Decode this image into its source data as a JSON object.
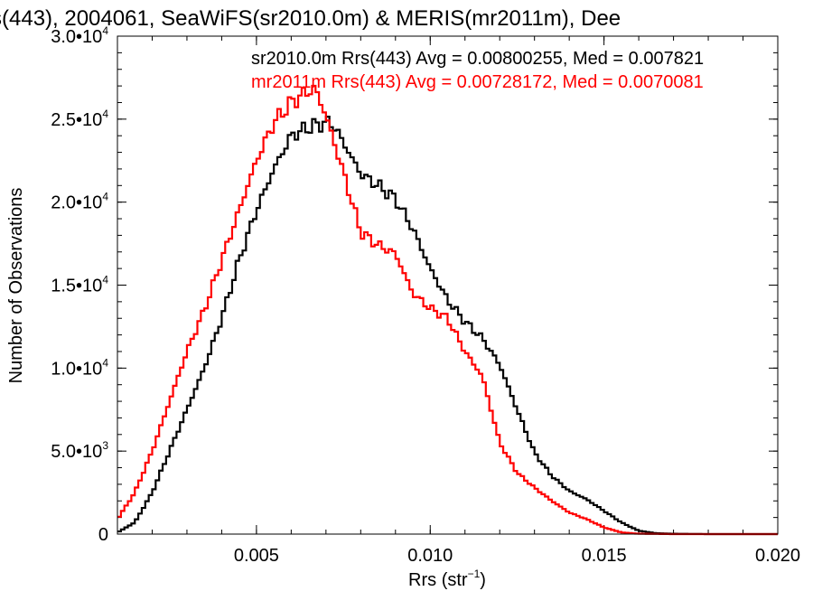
{
  "chart_data": {
    "type": "line",
    "title": "s(443), 2004061, SeaWiFS(sr2010.0m) & MERIS(mr2011m), Dee",
    "xlabel": "Rrs (str",
    "xlabel_sup": "−1",
    "xlabel_close": ")",
    "ylabel": "Number of Observations",
    "xlim": [
      0.001,
      0.02
    ],
    "ylim": [
      0,
      30000
    ],
    "x_ticks": [
      {
        "value": 0.005,
        "label": "0.005"
      },
      {
        "value": 0.01,
        "label": "0.010"
      },
      {
        "value": 0.015,
        "label": "0.015"
      },
      {
        "value": 0.02,
        "label": "0.020"
      }
    ],
    "y_ticks": [
      {
        "value": 0,
        "mant": "0",
        "exp": ""
      },
      {
        "value": 5000,
        "mant": "5.0•10",
        "exp": "3"
      },
      {
        "value": 10000,
        "mant": "1.0•10",
        "exp": "4"
      },
      {
        "value": 15000,
        "mant": "1.5•10",
        "exp": "4"
      },
      {
        "value": 20000,
        "mant": "2.0•10",
        "exp": "4"
      },
      {
        "value": 25000,
        "mant": "2.5•10",
        "exp": "4"
      },
      {
        "value": 30000,
        "mant": "3.0•10",
        "exp": "4"
      }
    ],
    "grid": false,
    "step": true,
    "series": [
      {
        "name": "sr2010.0m",
        "label": "sr2010.0m Rrs(443) Avg = 0.00800255, Med = 0.007821",
        "color": "#000000",
        "x": [
          0.001,
          0.0015,
          0.002,
          0.0025,
          0.003,
          0.0035,
          0.004,
          0.0045,
          0.005,
          0.0055,
          0.006,
          0.0065,
          0.007,
          0.0072,
          0.0075,
          0.008,
          0.0085,
          0.009,
          0.0095,
          0.01,
          0.0105,
          0.011,
          0.0115,
          0.012,
          0.0125,
          0.013,
          0.0135,
          0.014,
          0.0145,
          0.015,
          0.0155,
          0.016,
          0.0165,
          0.017,
          0.018,
          0.02
        ],
        "y": [
          100,
          700,
          2500,
          5000,
          7500,
          10000,
          13000,
          16500,
          19500,
          22000,
          24000,
          24500,
          24800,
          24700,
          23600,
          21700,
          21000,
          20200,
          18400,
          16000,
          14100,
          12800,
          11800,
          10200,
          7500,
          4900,
          3500,
          2600,
          2100,
          1400,
          700,
          200,
          50,
          20,
          0,
          0
        ]
      },
      {
        "name": "mr2011m",
        "label": "mr2011m Rrs(443) Avg = 0.00728172, Med = 0.0070081",
        "color": "#ff0000",
        "x": [
          0.001,
          0.0015,
          0.002,
          0.0025,
          0.003,
          0.0035,
          0.004,
          0.0045,
          0.005,
          0.0055,
          0.006,
          0.0065,
          0.0067,
          0.007,
          0.0075,
          0.008,
          0.0085,
          0.009,
          0.0095,
          0.01,
          0.0105,
          0.011,
          0.0115,
          0.012,
          0.0125,
          0.013,
          0.0135,
          0.014,
          0.0145,
          0.015,
          0.0155,
          0.016,
          0.017,
          0.02
        ],
        "y": [
          900,
          2500,
          5000,
          8000,
          11000,
          13500,
          16500,
          19500,
          22500,
          24800,
          26000,
          26700,
          26800,
          25200,
          21800,
          18200,
          17400,
          16900,
          14500,
          13600,
          13000,
          11000,
          9500,
          5500,
          3700,
          2800,
          2000,
          1300,
          900,
          400,
          100,
          20,
          0,
          0
        ]
      }
    ]
  }
}
